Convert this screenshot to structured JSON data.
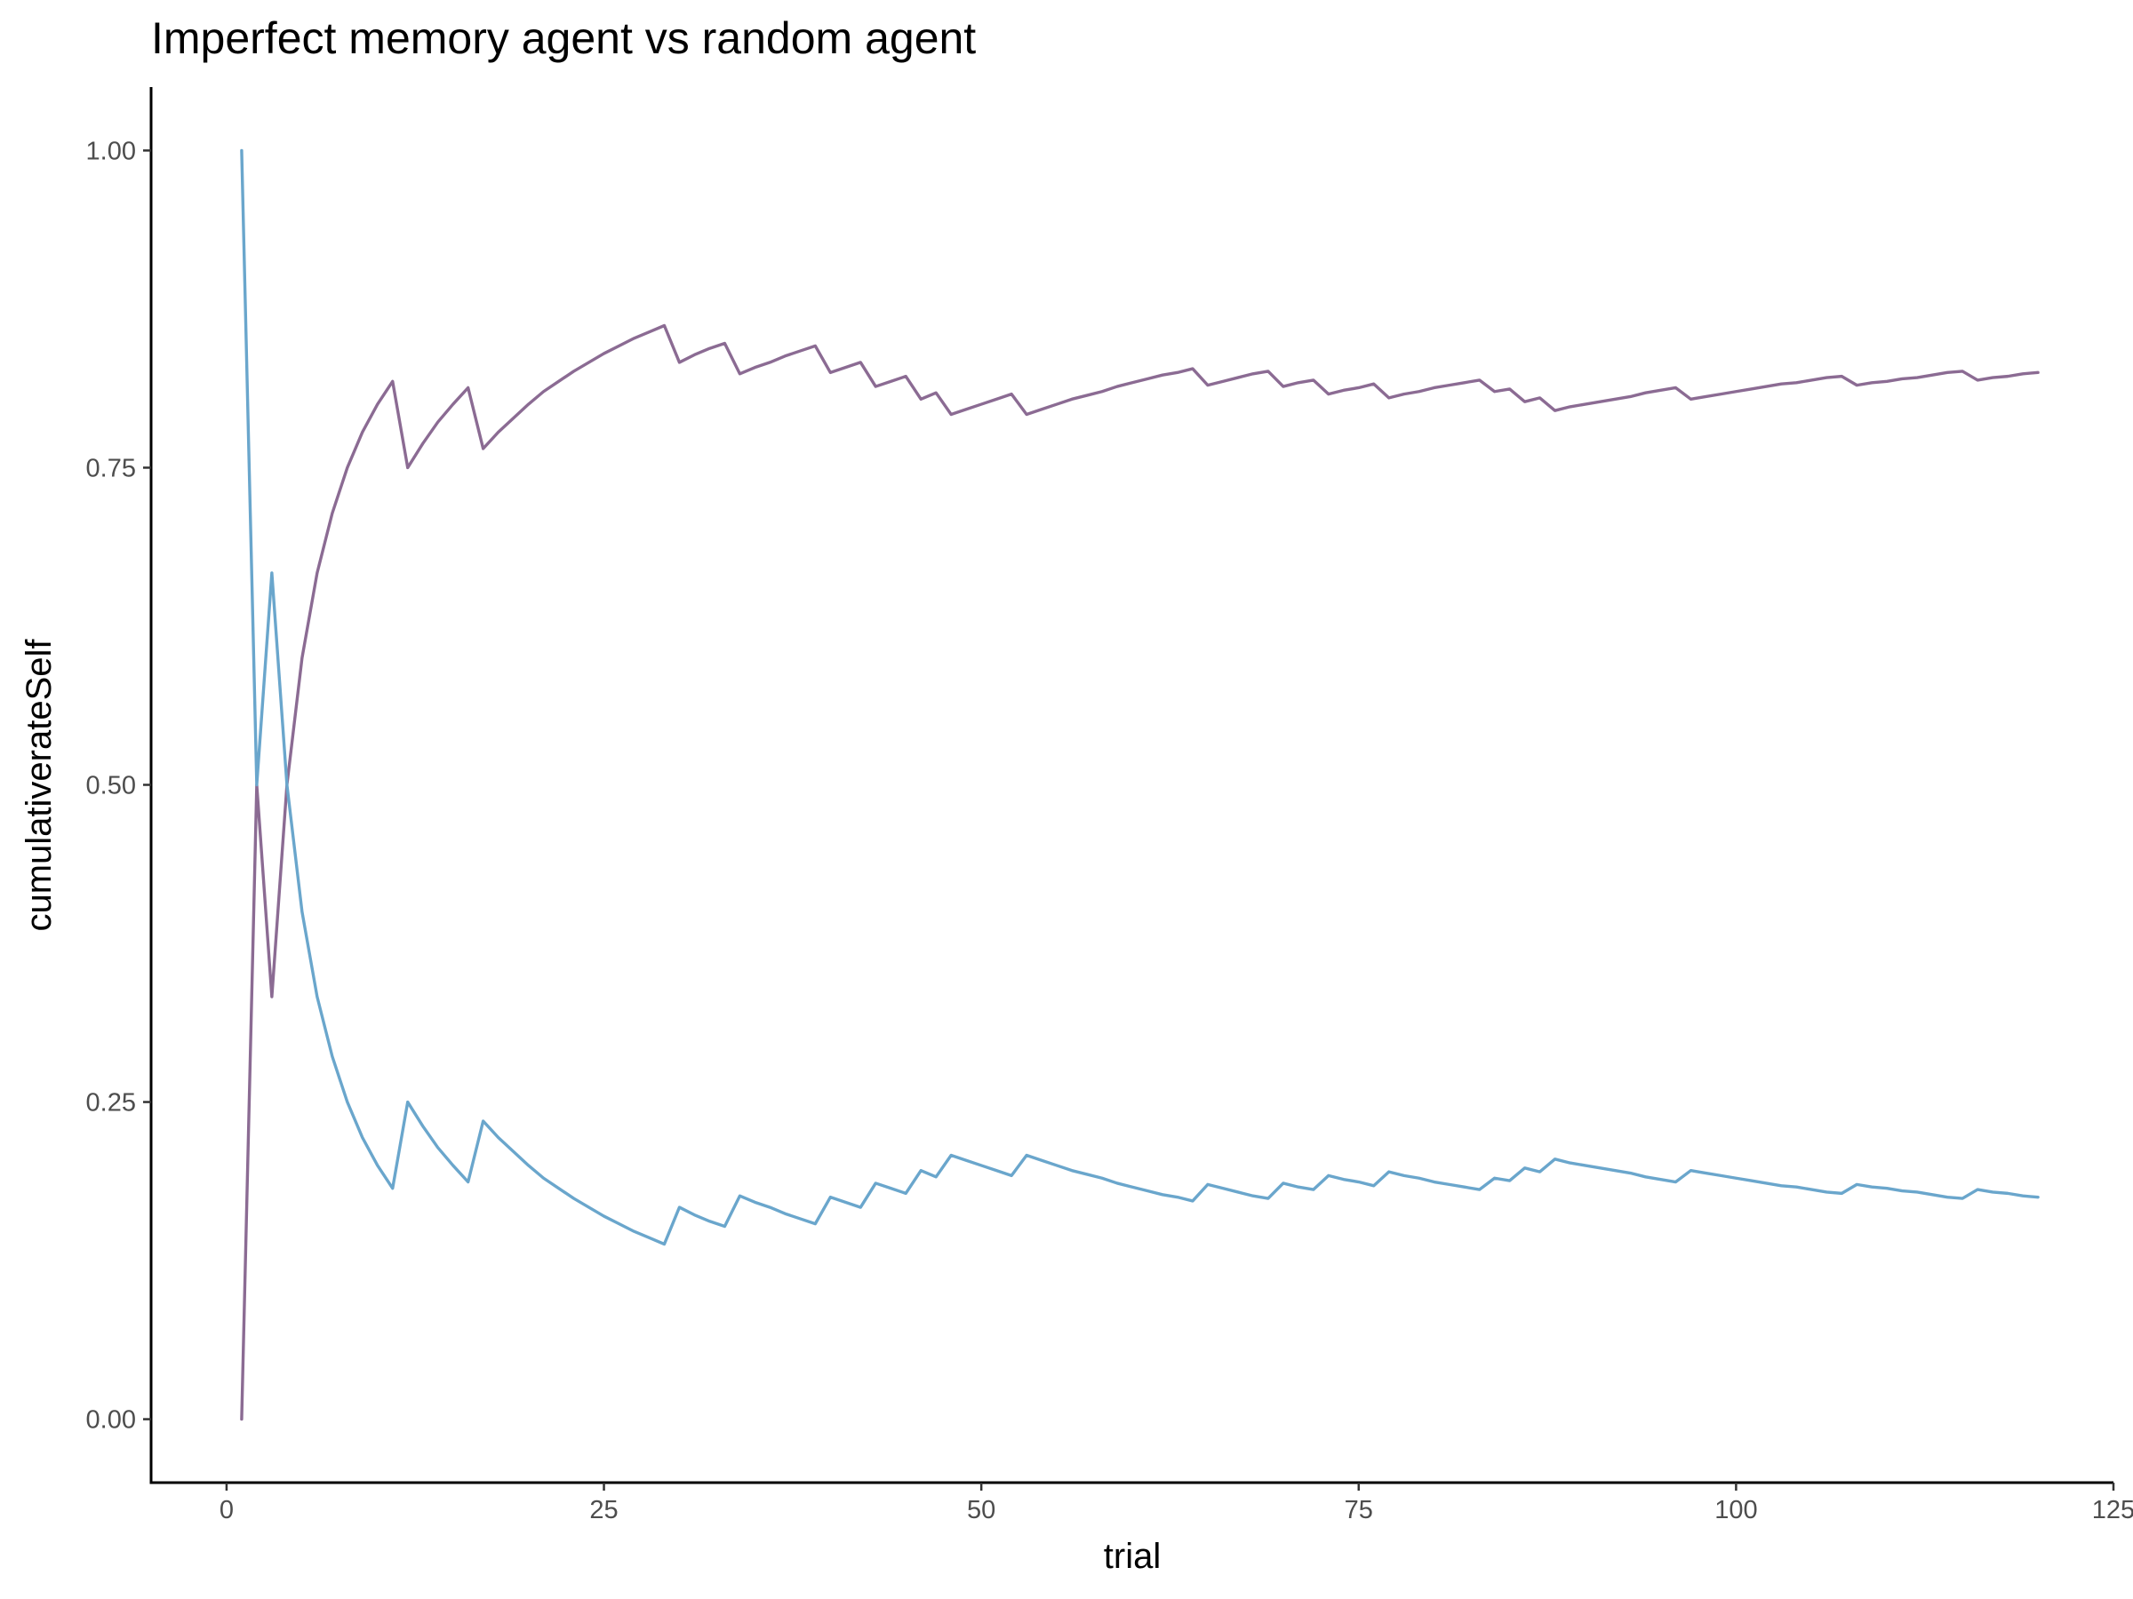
{
  "chart_data": {
    "type": "line",
    "title": "Imperfect memory agent vs random agent",
    "xlabel": "trial",
    "ylabel": "cumulativerateSelf",
    "xlim": [
      -5,
      125
    ],
    "ylim": [
      -0.05,
      1.05
    ],
    "x_ticks": [
      0,
      25,
      50,
      75,
      100,
      125
    ],
    "x_tick_labels": [
      "0",
      "25",
      "50",
      "75",
      "100",
      "125"
    ],
    "y_ticks": [
      0,
      0.25,
      0.5,
      0.75,
      1.0
    ],
    "y_tick_labels": [
      "0.00",
      "0.25",
      "0.50",
      "0.75",
      "1.00"
    ],
    "grid": false,
    "legend": "none",
    "series": [
      {
        "color": "#8b6b93",
        "points": [
          [
            1,
            0
          ],
          [
            2,
            0.5
          ],
          [
            3,
            0.333
          ],
          [
            4,
            0.5
          ],
          [
            5,
            0.6
          ],
          [
            6,
            0.667
          ],
          [
            7,
            0.714
          ],
          [
            8,
            0.75
          ],
          [
            9,
            0.778
          ],
          [
            10,
            0.8
          ],
          [
            11,
            0.818
          ],
          [
            12,
            0.75
          ],
          [
            13,
            0.769
          ],
          [
            14,
            0.786
          ],
          [
            15,
            0.8
          ],
          [
            16,
            0.813
          ],
          [
            17,
            0.765
          ],
          [
            18,
            0.778
          ],
          [
            19,
            0.789
          ],
          [
            20,
            0.8
          ],
          [
            21,
            0.81
          ],
          [
            22,
            0.818
          ],
          [
            23,
            0.826
          ],
          [
            24,
            0.833
          ],
          [
            25,
            0.84
          ],
          [
            26,
            0.846
          ],
          [
            27,
            0.852
          ],
          [
            28,
            0.857
          ],
          [
            29,
            0.862
          ],
          [
            30,
            0.833
          ],
          [
            31,
            0.839
          ],
          [
            32,
            0.844
          ],
          [
            33,
            0.848
          ],
          [
            34,
            0.824
          ],
          [
            35,
            0.829
          ],
          [
            36,
            0.833
          ],
          [
            37,
            0.838
          ],
          [
            38,
            0.842
          ],
          [
            39,
            0.846
          ],
          [
            40,
            0.825
          ],
          [
            41,
            0.829
          ],
          [
            42,
            0.833
          ],
          [
            43,
            0.814
          ],
          [
            44,
            0.818
          ],
          [
            45,
            0.822
          ],
          [
            46,
            0.804
          ],
          [
            47,
            0.809
          ],
          [
            48,
            0.792
          ],
          [
            49,
            0.796
          ],
          [
            50,
            0.8
          ],
          [
            51,
            0.804
          ],
          [
            52,
            0.808
          ],
          [
            53,
            0.792
          ],
          [
            54,
            0.796
          ],
          [
            55,
            0.8
          ],
          [
            56,
            0.804
          ],
          [
            57,
            0.807
          ],
          [
            58,
            0.81
          ],
          [
            59,
            0.814
          ],
          [
            60,
            0.817
          ],
          [
            61,
            0.82
          ],
          [
            62,
            0.823
          ],
          [
            63,
            0.825
          ],
          [
            64,
            0.828
          ],
          [
            65,
            0.815
          ],
          [
            66,
            0.818
          ],
          [
            67,
            0.821
          ],
          [
            68,
            0.824
          ],
          [
            69,
            0.826
          ],
          [
            70,
            0.814
          ],
          [
            71,
            0.817
          ],
          [
            72,
            0.819
          ],
          [
            73,
            0.808
          ],
          [
            74,
            0.811
          ],
          [
            75,
            0.813
          ],
          [
            76,
            0.816
          ],
          [
            77,
            0.805
          ],
          [
            78,
            0.808
          ],
          [
            79,
            0.81
          ],
          [
            80,
            0.813
          ],
          [
            81,
            0.815
          ],
          [
            82,
            0.817
          ],
          [
            83,
            0.819
          ],
          [
            84,
            0.81
          ],
          [
            85,
            0.812
          ],
          [
            86,
            0.802
          ],
          [
            87,
            0.805
          ],
          [
            88,
            0.795
          ],
          [
            89,
            0.798
          ],
          [
            90,
            0.8
          ],
          [
            91,
            0.802
          ],
          [
            92,
            0.804
          ],
          [
            93,
            0.806
          ],
          [
            94,
            0.809
          ],
          [
            95,
            0.811
          ],
          [
            96,
            0.813
          ],
          [
            97,
            0.804
          ],
          [
            98,
            0.806
          ],
          [
            99,
            0.808
          ],
          [
            100,
            0.81
          ],
          [
            101,
            0.812
          ],
          [
            102,
            0.814
          ],
          [
            103,
            0.816
          ],
          [
            104,
            0.817
          ],
          [
            105,
            0.819
          ],
          [
            106,
            0.821
          ],
          [
            107,
            0.822
          ],
          [
            108,
            0.815
          ],
          [
            109,
            0.817
          ],
          [
            110,
            0.818
          ],
          [
            111,
            0.82
          ],
          [
            112,
            0.821
          ],
          [
            113,
            0.823
          ],
          [
            114,
            0.825
          ],
          [
            115,
            0.826
          ],
          [
            116,
            0.819
          ],
          [
            117,
            0.821
          ],
          [
            118,
            0.822
          ],
          [
            119,
            0.824
          ],
          [
            120,
            0.825
          ]
        ]
      },
      {
        "color": "#6aa6cc",
        "points": [
          [
            1,
            1
          ],
          [
            2,
            0.5
          ],
          [
            3,
            0.667
          ],
          [
            4,
            0.5
          ],
          [
            5,
            0.4
          ],
          [
            6,
            0.333
          ],
          [
            7,
            0.286
          ],
          [
            8,
            0.25
          ],
          [
            9,
            0.222
          ],
          [
            10,
            0.2
          ],
          [
            11,
            0.182
          ],
          [
            12,
            0.25
          ],
          [
            13,
            0.231
          ],
          [
            14,
            0.214
          ],
          [
            15,
            0.2
          ],
          [
            16,
            0.187
          ],
          [
            17,
            0.235
          ],
          [
            18,
            0.222
          ],
          [
            19,
            0.211
          ],
          [
            20,
            0.2
          ],
          [
            21,
            0.19
          ],
          [
            22,
            0.182
          ],
          [
            23,
            0.174
          ],
          [
            24,
            0.167
          ],
          [
            25,
            0.16
          ],
          [
            26,
            0.154
          ],
          [
            27,
            0.148
          ],
          [
            28,
            0.143
          ],
          [
            29,
            0.138
          ],
          [
            30,
            0.167
          ],
          [
            31,
            0.161
          ],
          [
            32,
            0.156
          ],
          [
            33,
            0.152
          ],
          [
            34,
            0.176
          ],
          [
            35,
            0.171
          ],
          [
            36,
            0.167
          ],
          [
            37,
            0.162
          ],
          [
            38,
            0.158
          ],
          [
            39,
            0.154
          ],
          [
            40,
            0.175
          ],
          [
            41,
            0.171
          ],
          [
            42,
            0.167
          ],
          [
            43,
            0.186
          ],
          [
            44,
            0.182
          ],
          [
            45,
            0.178
          ],
          [
            46,
            0.196
          ],
          [
            47,
            0.191
          ],
          [
            48,
            0.208
          ],
          [
            49,
            0.204
          ],
          [
            50,
            0.2
          ],
          [
            51,
            0.196
          ],
          [
            52,
            0.192
          ],
          [
            53,
            0.208
          ],
          [
            54,
            0.204
          ],
          [
            55,
            0.2
          ],
          [
            56,
            0.196
          ],
          [
            57,
            0.193
          ],
          [
            58,
            0.19
          ],
          [
            59,
            0.186
          ],
          [
            60,
            0.183
          ],
          [
            61,
            0.18
          ],
          [
            62,
            0.177
          ],
          [
            63,
            0.175
          ],
          [
            64,
            0.172
          ],
          [
            65,
            0.185
          ],
          [
            66,
            0.182
          ],
          [
            67,
            0.179
          ],
          [
            68,
            0.176
          ],
          [
            69,
            0.174
          ],
          [
            70,
            0.186
          ],
          [
            71,
            0.183
          ],
          [
            72,
            0.181
          ],
          [
            73,
            0.192
          ],
          [
            74,
            0.189
          ],
          [
            75,
            0.187
          ],
          [
            76,
            0.184
          ],
          [
            77,
            0.195
          ],
          [
            78,
            0.192
          ],
          [
            79,
            0.19
          ],
          [
            80,
            0.187
          ],
          [
            81,
            0.185
          ],
          [
            82,
            0.183
          ],
          [
            83,
            0.181
          ],
          [
            84,
            0.19
          ],
          [
            85,
            0.188
          ],
          [
            86,
            0.198
          ],
          [
            87,
            0.195
          ],
          [
            88,
            0.205
          ],
          [
            89,
            0.202
          ],
          [
            90,
            0.2
          ],
          [
            91,
            0.198
          ],
          [
            92,
            0.196
          ],
          [
            93,
            0.194
          ],
          [
            94,
            0.191
          ],
          [
            95,
            0.189
          ],
          [
            96,
            0.187
          ],
          [
            97,
            0.196
          ],
          [
            98,
            0.194
          ],
          [
            99,
            0.192
          ],
          [
            100,
            0.19
          ],
          [
            101,
            0.188
          ],
          [
            102,
            0.186
          ],
          [
            103,
            0.184
          ],
          [
            104,
            0.183
          ],
          [
            105,
            0.181
          ],
          [
            106,
            0.179
          ],
          [
            107,
            0.178
          ],
          [
            108,
            0.185
          ],
          [
            109,
            0.183
          ],
          [
            110,
            0.182
          ],
          [
            111,
            0.18
          ],
          [
            112,
            0.179
          ],
          [
            113,
            0.177
          ],
          [
            114,
            0.175
          ],
          [
            115,
            0.174
          ],
          [
            116,
            0.181
          ],
          [
            117,
            0.179
          ],
          [
            118,
            0.178
          ],
          [
            119,
            0.176
          ],
          [
            120,
            0.175
          ]
        ]
      }
    ]
  }
}
